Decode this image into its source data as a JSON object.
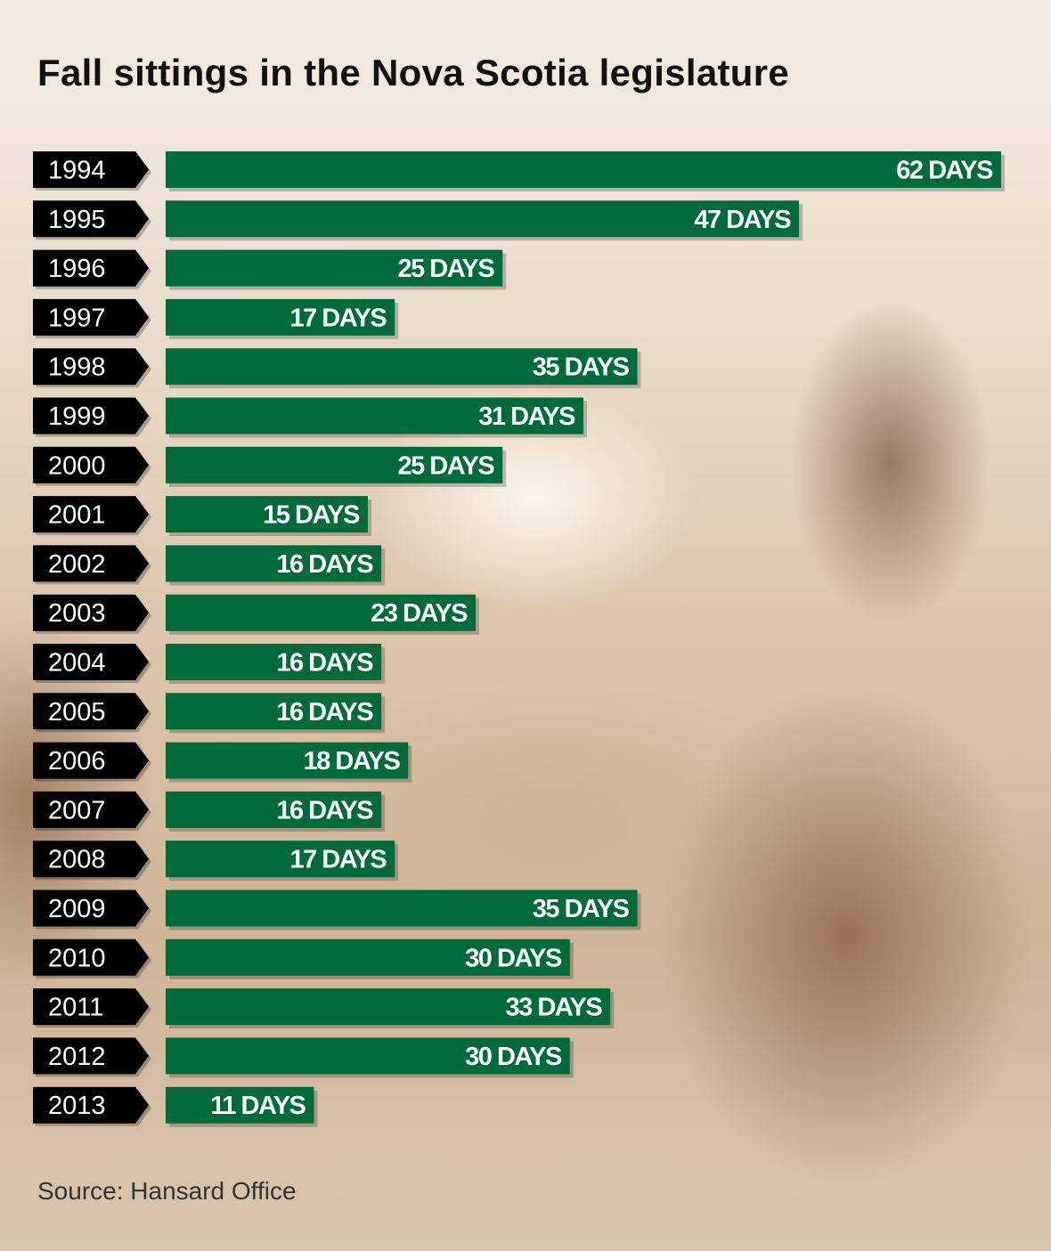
{
  "chart_data": {
    "type": "bar",
    "orientation": "horizontal",
    "title": "Fall sittings in the Nova Scotia legislature",
    "source": "Source: Hansard Office",
    "categories": [
      "1994",
      "1995",
      "1996",
      "1997",
      "1998",
      "1999",
      "2000",
      "2001",
      "2002",
      "2003",
      "2004",
      "2005",
      "2006",
      "2007",
      "2008",
      "2009",
      "2010",
      "2011",
      "2012",
      "2013"
    ],
    "values": [
      62,
      47,
      25,
      17,
      35,
      31,
      25,
      15,
      16,
      23,
      16,
      16,
      18,
      16,
      17,
      35,
      30,
      33,
      30,
      11
    ],
    "data_labels": [
      "62 DAYS",
      "47 DAYS",
      "25 DAYS",
      "17 DAYS",
      "35 DAYS",
      "31 DAYS",
      "25 DAYS",
      "15 DAYS",
      "16 DAYS",
      "23 DAYS",
      "16 DAYS",
      "16 DAYS",
      "18 DAYS",
      "16 DAYS",
      "17 DAYS",
      "35 DAYS",
      "30 DAYS",
      "33 DAYS",
      "30 DAYS",
      "11 DAYS"
    ],
    "unit": "DAYS",
    "grid": false,
    "colors": {
      "bar": "#006b3a",
      "label_bg": "#000000",
      "text": "#ffffff"
    }
  }
}
